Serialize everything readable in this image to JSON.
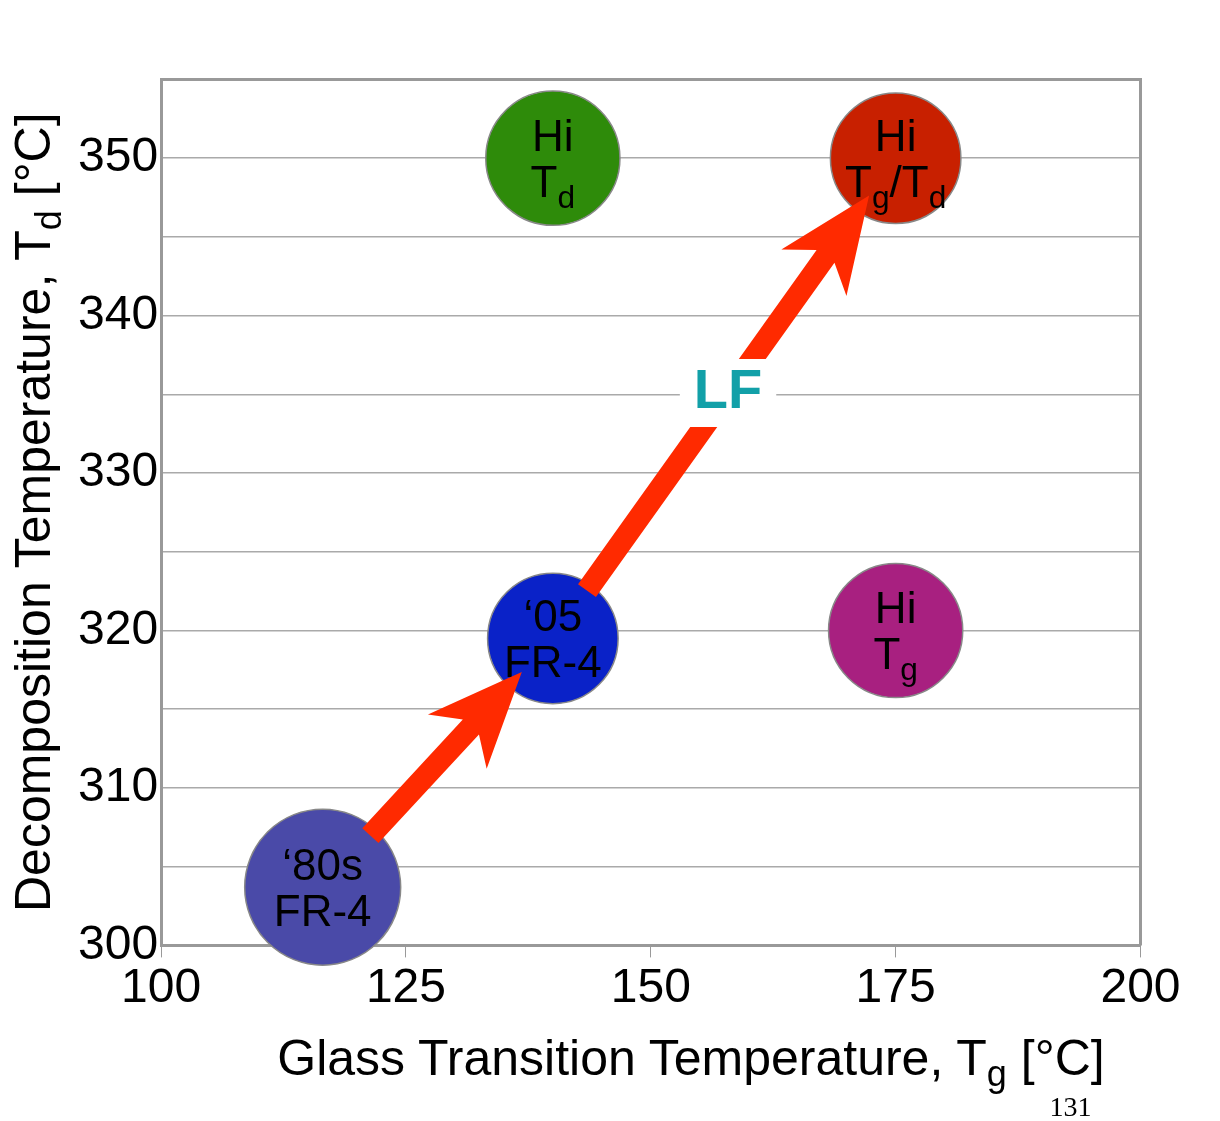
{
  "chart_data": {
    "type": "bubble",
    "xlabel": "Glass Transition Temperature, T$_{g}$ [°C]",
    "ylabel": "Decomposition Temperature, T$_{d}$ [°C]",
    "x": [
      116.5,
      140,
      140,
      175,
      175
    ],
    "values": [
      303.7,
      319.5,
      350,
      350,
      320
    ],
    "sizes": [
      1,
      0.7,
      0.74,
      0.7,
      0.74
    ],
    "colors": [
      "#4a4aa8",
      "#0a22c8",
      "#2e8b0a",
      "#c82000",
      "#a82080"
    ],
    "value_labels": [
      "‘80s\nFR-4",
      "‘05\nFR-4",
      "Hi\nT$_{d}$",
      "Hi\nT$_{g}$/T$_{d}$",
      "Hi\nT$_{g}$"
    ],
    "xlim": [
      100,
      200
    ],
    "xticks": [
      100,
      125,
      150,
      175,
      200
    ],
    "ylim": [
      300,
      355
    ],
    "yticks": [
      300,
      {
        "value": 305,
        "label": null
      },
      310,
      {
        "value": 315,
        "label": null
      },
      320,
      {
        "value": 325,
        "label": null
      },
      330,
      {
        "value": 335,
        "label": null
      },
      340,
      {
        "value": 345,
        "label": null
      },
      350,
      {
        "value": 355,
        "label": null
      }
    ],
    "grid": "y",
    "annotations": [
      "LF",
      "131"
    ]
  }
}
